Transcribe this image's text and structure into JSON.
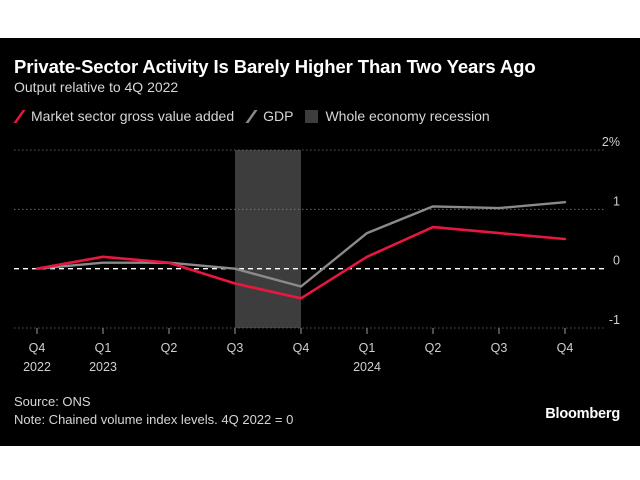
{
  "title": "Private-Sector Activity Is Barely Higher Than Two Years Ago",
  "subtitle": "Output relative to 4Q 2022",
  "legend": [
    {
      "label": "Market sector gross value added",
      "color": "#e8173f",
      "kind": "line"
    },
    {
      "label": "GDP",
      "color": "#8a8a8a",
      "kind": "line"
    },
    {
      "label": "Whole economy recession",
      "color": "#3d3d3d",
      "kind": "band"
    }
  ],
  "source": "Source: ONS",
  "note": "Note: Chained volume index levels. 4Q 2022 = 0",
  "brand": "Bloomberg",
  "chart_data": {
    "type": "line",
    "title": "Private-Sector Activity Is Barely Higher Than Two Years Ago",
    "subtitle": "Output relative to 4Q 2022",
    "x": [
      "Q4 2022",
      "Q1 2023",
      "Q2 2023",
      "Q3 2023",
      "Q4 2023",
      "Q1 2024",
      "Q2 2024",
      "Q3 2024",
      "Q4 2024"
    ],
    "x_tick_labels": [
      {
        "line1": "Q4",
        "line2": "2022"
      },
      {
        "line1": "Q1",
        "line2": "2023"
      },
      {
        "line1": "Q2",
        "line2": ""
      },
      {
        "line1": "Q3",
        "line2": ""
      },
      {
        "line1": "Q4",
        "line2": ""
      },
      {
        "line1": "Q1",
        "line2": "2024"
      },
      {
        "line1": "Q2",
        "line2": ""
      },
      {
        "line1": "Q3",
        "line2": ""
      },
      {
        "line1": "Q4",
        "line2": ""
      }
    ],
    "series": [
      {
        "name": "Market sector gross value added",
        "color": "#e8173f",
        "values": [
          0.0,
          0.2,
          0.1,
          -0.25,
          -0.5,
          0.2,
          0.7,
          0.6,
          0.5
        ]
      },
      {
        "name": "GDP",
        "color": "#8a8a8a",
        "values": [
          0.0,
          0.1,
          0.1,
          0.0,
          -0.3,
          0.6,
          1.05,
          1.02,
          1.12
        ]
      }
    ],
    "recession": {
      "start": "Q3 2023",
      "end": "Q4 2023",
      "label": "Whole economy recession"
    },
    "ylim": [
      -1,
      2
    ],
    "y_ticks": [
      {
        "value": 2,
        "label": "2%"
      },
      {
        "value": 1,
        "label": "1"
      },
      {
        "value": 0,
        "label": "0"
      },
      {
        "value": -1,
        "label": "-1"
      }
    ],
    "zero_line": "dashed",
    "grid": "dotted horizontal",
    "legend_position": "top-left",
    "xlabel": "",
    "ylabel": ""
  }
}
